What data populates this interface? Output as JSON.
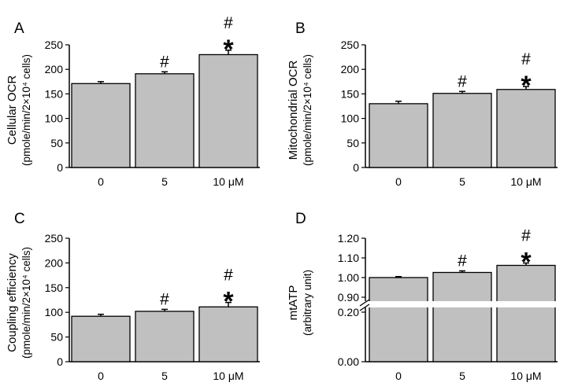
{
  "chart_data": [
    {
      "panel": "A",
      "type": "bar",
      "categories": [
        "0",
        "5",
        "10 μM"
      ],
      "values": [
        171,
        191,
        230
      ],
      "errors": [
        4,
        4,
        9
      ],
      "annotations": [
        [],
        [
          "#"
        ],
        [
          "#",
          "*"
        ]
      ],
      "ylabel": [
        "Cellular OCR",
        "(pmole/min/2×10⁴ cells)"
      ],
      "ylim": [
        0,
        250
      ],
      "yticks": [
        "0",
        "50",
        "100",
        "150",
        "200",
        "250"
      ]
    },
    {
      "panel": "B",
      "type": "bar",
      "categories": [
        "0",
        "5",
        "10 μM"
      ],
      "values": [
        130,
        151,
        159
      ],
      "errors": [
        5,
        4,
        6
      ],
      "annotations": [
        [],
        [
          "#"
        ],
        [
          "#",
          "*"
        ]
      ],
      "ylabel": [
        "Mitochondrial OCR",
        "(pmole/min/2×10⁴ cells)"
      ],
      "ylim": [
        0,
        250
      ],
      "yticks": [
        "0",
        "50",
        "100",
        "150",
        "200",
        "250"
      ]
    },
    {
      "panel": "C",
      "type": "bar",
      "categories": [
        "0",
        "5",
        "10 μM"
      ],
      "values": [
        92,
        102,
        111
      ],
      "errors": [
        4,
        4,
        9
      ],
      "annotations": [
        [],
        [
          "#"
        ],
        [
          "#",
          "*"
        ]
      ],
      "ylabel": [
        "Coupling efficiency",
        "(pmole/min/2×10⁴ cells)"
      ],
      "ylim": [
        0,
        250
      ],
      "yticks": [
        "0",
        "50",
        "100",
        "150",
        "200",
        "250"
      ]
    },
    {
      "panel": "D",
      "type": "bar",
      "categories": [
        "0",
        "5",
        "10 μM"
      ],
      "values": [
        1.0,
        1.026,
        1.062
      ],
      "errors": [
        0.005,
        0.008,
        0.012
      ],
      "annotations": [
        [],
        [
          "#"
        ],
        [
          "#",
          "*"
        ]
      ],
      "ylabel": [
        "mtATP",
        "(arbitrary unit)"
      ],
      "ylim": [
        0,
        1.2
      ],
      "axis_break": [
        0.2,
        0.9
      ],
      "yticks": [
        "0.00",
        "0.20",
        "0.90",
        "1.00",
        "1.10",
        "1.20"
      ]
    }
  ]
}
